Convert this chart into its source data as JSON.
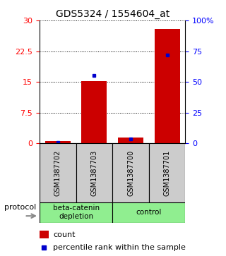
{
  "title": "GDS5324 / 1554604_at",
  "samples": [
    "GSM1387702",
    "GSM1387703",
    "GSM1387700",
    "GSM1387701"
  ],
  "count_values": [
    0.5,
    15.2,
    1.5,
    28.0
  ],
  "percentile_values": [
    1.0,
    55.0,
    3.5,
    72.0
  ],
  "groups": [
    {
      "label": "beta-catenin\ndepletion",
      "color": "#90ee90"
    },
    {
      "label": "control",
      "color": "#90ee90"
    }
  ],
  "protocol_label": "protocol",
  "y_left_ticks": [
    0,
    7.5,
    15,
    22.5,
    30
  ],
  "y_right_ticks": [
    0,
    25,
    50,
    75,
    100
  ],
  "y_right_labels": [
    "0",
    "25",
    "50",
    "75",
    "100%"
  ],
  "ylim": [
    0,
    30
  ],
  "bar_color": "#cc0000",
  "percentile_color": "#0000cc",
  "sample_box_color": "#cccccc",
  "legend_count_color": "#cc0000",
  "legend_percentile_color": "#0000cc"
}
